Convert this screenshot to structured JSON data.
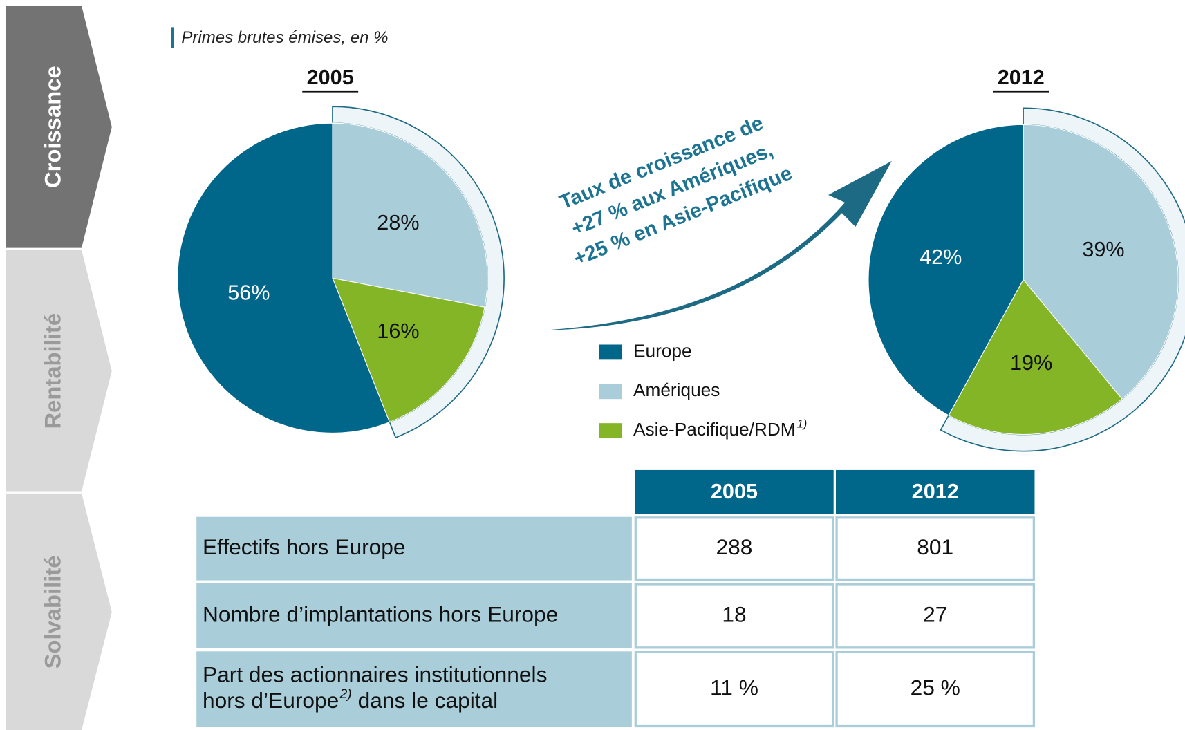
{
  "tabs": [
    "Croissance",
    "Rentabilité",
    "Solvabilité"
  ],
  "subtitle": "Primes brutes émises, en %",
  "annotation": [
    "Taux de croissance de",
    "+27 % aux Amériques,",
    "+25 % en Asie-Pacifique"
  ],
  "chart_data": [
    {
      "type": "pie",
      "title": "2005",
      "categories": [
        "Amériques",
        "Asie-Pacifique/RDM",
        "Europe"
      ],
      "values": [
        28,
        16,
        56
      ],
      "value_labels": [
        "28%",
        "16%",
        "56%"
      ],
      "colors": [
        "#a9cdd9",
        "#84b526",
        "#00668a"
      ]
    },
    {
      "type": "pie",
      "title": "2012",
      "categories": [
        "Amériques",
        "Asie-Pacifique/RDM",
        "Europe"
      ],
      "values": [
        39,
        19,
        42
      ],
      "value_labels": [
        "39%",
        "19%",
        "42%"
      ],
      "colors": [
        "#a9cdd9",
        "#84b526",
        "#00668a"
      ]
    }
  ],
  "legend_footnote": "1)",
  "table": {
    "header": [
      "2005",
      "2012"
    ],
    "rows": [
      {
        "label": [
          "Effectifs hors Europe"
        ],
        "values": [
          "288",
          "801"
        ]
      },
      {
        "label": [
          "Nombre d’implantations hors Europe"
        ],
        "values": [
          "18",
          "27"
        ]
      },
      {
        "label": [
          "Part des actionnaires institutionnels",
          "hors d’Europe"
        ],
        "footnote": "2)",
        "label_after": " dans le capital",
        "values": [
          "11 %",
          "25 %"
        ]
      }
    ]
  }
}
